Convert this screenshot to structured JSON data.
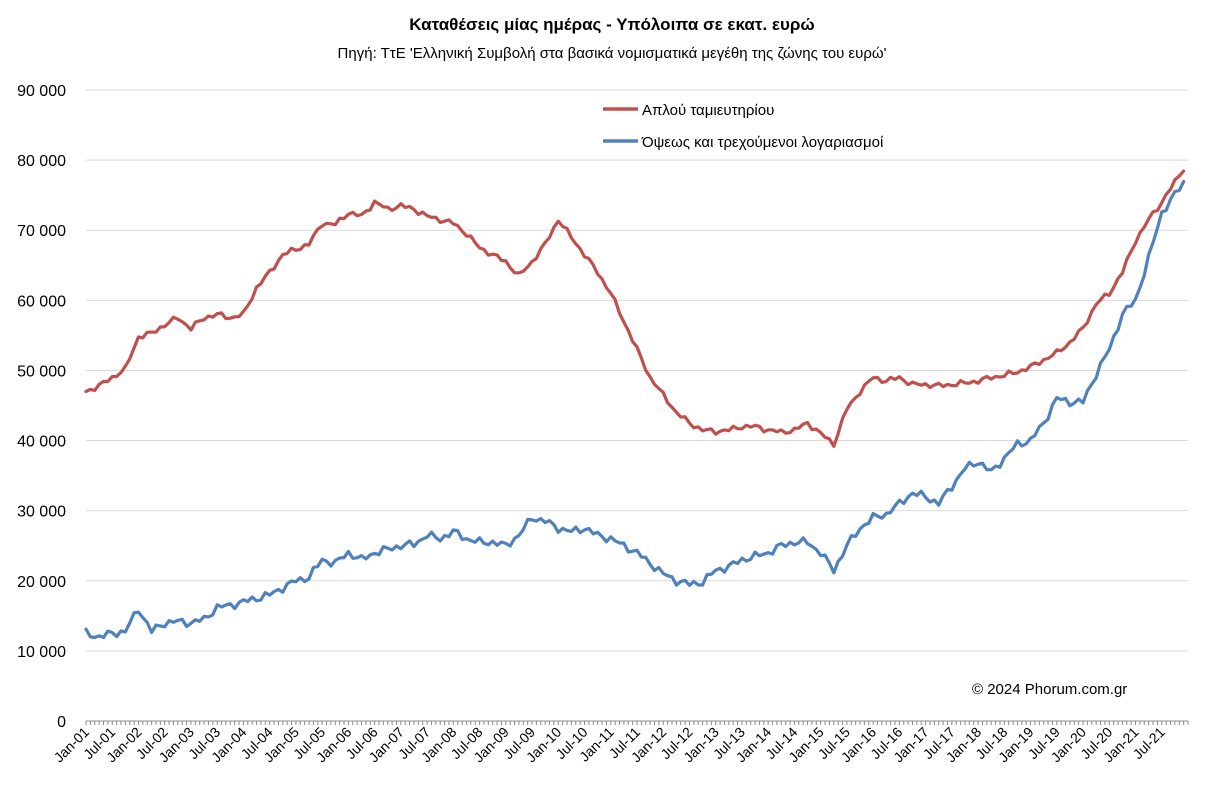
{
  "chart_data": {
    "type": "line",
    "title": "Καταθέσεις μίας ημέρας - Υπόλοιπα σε εκατ. ευρώ",
    "subtitle": "Πηγή: ΤτΕ 'Ελληνική Συμβολή στα βασικά νομισματικά μεγέθη της ζώνης του ευρώ'",
    "copyright": "© 2024 Phorum.com.gr",
    "xlabel": "",
    "ylabel": "",
    "ylim": [
      0,
      90000
    ],
    "y_ticks": [
      {
        "value": 0,
        "label": "0"
      },
      {
        "value": 10000,
        "label": "10 000"
      },
      {
        "value": 20000,
        "label": "20 000"
      },
      {
        "value": 30000,
        "label": "30 000"
      },
      {
        "value": 40000,
        "label": "40 000"
      },
      {
        "value": 50000,
        "label": "50 000"
      },
      {
        "value": 60000,
        "label": "60 000"
      },
      {
        "value": 70000,
        "label": "70 000"
      },
      {
        "value": 80000,
        "label": "80 000"
      },
      {
        "value": 90000,
        "label": "90 000"
      }
    ],
    "grid": "horizontal",
    "legend_position": "top-right",
    "x_start": "2001-01",
    "x_end": "2021-12",
    "x_tick_labels": [
      "Jan-01",
      "Jul-01",
      "Jan-02",
      "Jul-02",
      "Jan-03",
      "Jul-03",
      "Jan-04",
      "Jul-04",
      "Jan-05",
      "Jul-05",
      "Jan-06",
      "Jul-06",
      "Jan-07",
      "Jul-07",
      "Jan-08",
      "Jul-08",
      "Jan-09",
      "Jul-09",
      "Jan-10",
      "Jul-10",
      "Jan-11",
      "Jul-11",
      "Jan-12",
      "Jul-12",
      "Jan-13",
      "Jul-13",
      "Jan-14",
      "Jul-14",
      "Jan-15",
      "Jul-15",
      "Jan-16",
      "Jul-16",
      "Jan-17",
      "Jul-17",
      "Jan-18",
      "Jul-18",
      "Jan-19",
      "Jul-19",
      "Jan-20",
      "Jul-20",
      "Jan-21",
      "Jul-21"
    ],
    "series": [
      {
        "name": "Απλού ταμιευτηρίου",
        "color": "#C0504D",
        "points": [
          [
            "2001-01",
            47000
          ],
          [
            "2001-04",
            47800
          ],
          [
            "2001-07",
            49000
          ],
          [
            "2001-10",
            50200
          ],
          [
            "2002-01",
            54800
          ],
          [
            "2002-04",
            55300
          ],
          [
            "2002-07",
            56500
          ],
          [
            "2002-10",
            57500
          ],
          [
            "2003-01",
            56000
          ],
          [
            "2003-04",
            57500
          ],
          [
            "2003-07",
            58000
          ],
          [
            "2003-10",
            57500
          ],
          [
            "2004-01",
            58000
          ],
          [
            "2004-04",
            61800
          ],
          [
            "2004-07",
            64000
          ],
          [
            "2004-10",
            66500
          ],
          [
            "2005-01",
            67300
          ],
          [
            "2005-04",
            68000
          ],
          [
            "2005-07",
            71000
          ],
          [
            "2005-10",
            70800
          ],
          [
            "2006-01",
            72500
          ],
          [
            "2006-04",
            72000
          ],
          [
            "2006-07",
            74000
          ],
          [
            "2006-10",
            73000
          ],
          [
            "2007-01",
            73500
          ],
          [
            "2007-04",
            73000
          ],
          [
            "2007-07",
            72000
          ],
          [
            "2007-10",
            71500
          ],
          [
            "2008-01",
            71000
          ],
          [
            "2008-04",
            69500
          ],
          [
            "2008-07",
            67500
          ],
          [
            "2008-10",
            66500
          ],
          [
            "2009-01",
            65500
          ],
          [
            "2009-04",
            63500
          ],
          [
            "2009-07",
            65500
          ],
          [
            "2009-10",
            68000
          ],
          [
            "2010-01",
            71500
          ],
          [
            "2010-04",
            69000
          ],
          [
            "2010-07",
            66500
          ],
          [
            "2010-10",
            64000
          ],
          [
            "2011-01",
            61000
          ],
          [
            "2011-04",
            57000
          ],
          [
            "2011-07",
            53000
          ],
          [
            "2011-10",
            49000
          ],
          [
            "2012-01",
            46500
          ],
          [
            "2012-04",
            44000
          ],
          [
            "2012-07",
            42500
          ],
          [
            "2012-10",
            41500
          ],
          [
            "2013-01",
            41300
          ],
          [
            "2013-04",
            41500
          ],
          [
            "2013-07",
            42000
          ],
          [
            "2013-10",
            42000
          ],
          [
            "2014-01",
            41500
          ],
          [
            "2014-04",
            41200
          ],
          [
            "2014-07",
            41500
          ],
          [
            "2014-10",
            42500
          ],
          [
            "2015-01",
            41000
          ],
          [
            "2015-04",
            39500
          ],
          [
            "2015-07",
            44500
          ],
          [
            "2015-10",
            47000
          ],
          [
            "2016-01",
            49000
          ],
          [
            "2016-04",
            48500
          ],
          [
            "2016-07",
            49000
          ],
          [
            "2016-10",
            48000
          ],
          [
            "2017-01",
            48000
          ],
          [
            "2017-04",
            47800
          ],
          [
            "2017-07",
            48000
          ],
          [
            "2017-10",
            48200
          ],
          [
            "2018-01",
            48500
          ],
          [
            "2018-04",
            49000
          ],
          [
            "2018-07",
            49300
          ],
          [
            "2018-10",
            49800
          ],
          [
            "2019-01",
            50500
          ],
          [
            "2019-04",
            51500
          ],
          [
            "2019-07",
            52500
          ],
          [
            "2019-10",
            54000
          ],
          [
            "2020-01",
            56000
          ],
          [
            "2020-04",
            59500
          ],
          [
            "2020-07",
            61000
          ],
          [
            "2020-10",
            64000
          ],
          [
            "2021-01",
            68500
          ],
          [
            "2021-04",
            71500
          ],
          [
            "2021-07",
            74000
          ],
          [
            "2021-12",
            78800
          ]
        ]
      },
      {
        "name": "Όψεως και τρεχούμενοι λογαριασμοί",
        "color": "#4F81BD",
        "points": [
          [
            "2001-01",
            12500
          ],
          [
            "2001-04",
            12000
          ],
          [
            "2001-07",
            12500
          ],
          [
            "2001-10",
            12800
          ],
          [
            "2002-01",
            16000
          ],
          [
            "2002-04",
            12800
          ],
          [
            "2002-07",
            14000
          ],
          [
            "2002-10",
            14200
          ],
          [
            "2003-01",
            14000
          ],
          [
            "2003-04",
            14500
          ],
          [
            "2003-07",
            16200
          ],
          [
            "2003-10",
            16500
          ],
          [
            "2004-01",
            17000
          ],
          [
            "2004-04",
            17500
          ],
          [
            "2004-07",
            18000
          ],
          [
            "2004-10",
            19000
          ],
          [
            "2005-01",
            20000
          ],
          [
            "2005-04",
            20500
          ],
          [
            "2005-07",
            23000
          ],
          [
            "2005-10",
            22500
          ],
          [
            "2006-01",
            24000
          ],
          [
            "2006-04",
            23000
          ],
          [
            "2006-07",
            24000
          ],
          [
            "2006-10",
            24500
          ],
          [
            "2007-01",
            25000
          ],
          [
            "2007-04",
            25200
          ],
          [
            "2007-07",
            26500
          ],
          [
            "2007-10",
            26000
          ],
          [
            "2008-01",
            27000
          ],
          [
            "2008-04",
            26000
          ],
          [
            "2008-07",
            25500
          ],
          [
            "2008-10",
            25500
          ],
          [
            "2009-01",
            25000
          ],
          [
            "2009-04",
            26500
          ],
          [
            "2009-07",
            29000
          ],
          [
            "2009-10",
            28500
          ],
          [
            "2010-01",
            27500
          ],
          [
            "2010-04",
            27000
          ],
          [
            "2010-07",
            27500
          ],
          [
            "2010-10",
            26500
          ],
          [
            "2011-01",
            26000
          ],
          [
            "2011-04",
            25000
          ],
          [
            "2011-07",
            24000
          ],
          [
            "2011-10",
            22500
          ],
          [
            "2012-01",
            21000
          ],
          [
            "2012-04",
            20000
          ],
          [
            "2012-07",
            19500
          ],
          [
            "2012-10",
            19800
          ],
          [
            "2013-01",
            21500
          ],
          [
            "2013-04",
            22000
          ],
          [
            "2013-07",
            23000
          ],
          [
            "2013-10",
            23500
          ],
          [
            "2014-01",
            24000
          ],
          [
            "2014-04",
            25000
          ],
          [
            "2014-07",
            25500
          ],
          [
            "2014-10",
            25500
          ],
          [
            "2015-01",
            24000
          ],
          [
            "2015-04",
            21500
          ],
          [
            "2015-07",
            25000
          ],
          [
            "2015-10",
            27500
          ],
          [
            "2016-01",
            29000
          ],
          [
            "2016-04",
            29500
          ],
          [
            "2016-07",
            31000
          ],
          [
            "2016-10",
            32500
          ],
          [
            "2017-01",
            32000
          ],
          [
            "2017-04",
            31000
          ],
          [
            "2017-07",
            33500
          ],
          [
            "2017-10",
            36000
          ],
          [
            "2018-01",
            37000
          ],
          [
            "2018-04",
            35500
          ],
          [
            "2018-07",
            37500
          ],
          [
            "2018-10",
            39500
          ],
          [
            "2019-01",
            40000
          ],
          [
            "2019-04",
            42500
          ],
          [
            "2019-07",
            46000
          ],
          [
            "2019-10",
            45500
          ],
          [
            "2020-01",
            45500
          ],
          [
            "2020-04",
            49500
          ],
          [
            "2020-07",
            53000
          ],
          [
            "2020-10",
            58000
          ],
          [
            "2021-01",
            60000
          ],
          [
            "2021-04",
            66000
          ],
          [
            "2021-07",
            72500
          ],
          [
            "2021-12",
            76800
          ]
        ]
      }
    ]
  }
}
